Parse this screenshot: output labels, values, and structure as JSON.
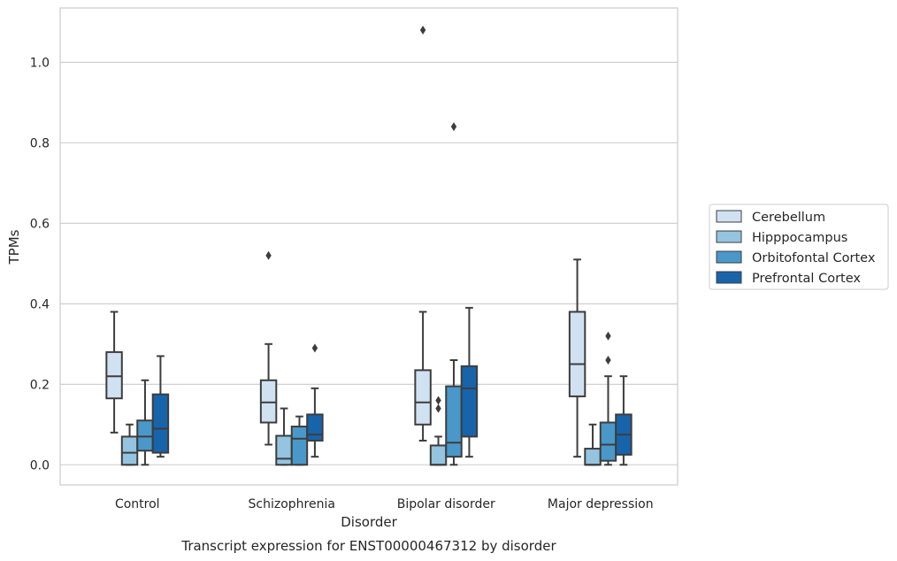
{
  "chart_data": {
    "type": "box",
    "xlabel": "Disorder",
    "ylabel": "TPMs",
    "caption": "Transcript expression for ENST00000467312 by disorder",
    "ylim": [
      -0.05,
      1.135
    ],
    "yticks": [
      0.0,
      0.2,
      0.4,
      0.6,
      0.8,
      1.0
    ],
    "ytick_labels": [
      "0.0",
      "0.2",
      "0.4",
      "0.6",
      "0.8",
      "1.0"
    ],
    "grid": "horizontal",
    "legend_position": "outside-right",
    "categories": [
      "Control",
      "Schizophrenia",
      "Bipolar disorder",
      "Major depression"
    ],
    "series": [
      {
        "name": "Cerebellum",
        "color": "#d0e1f2",
        "boxes": [
          {
            "whislo": 0.08,
            "q1": 0.165,
            "med": 0.22,
            "q3": 0.28,
            "whishi": 0.38,
            "fliers": []
          },
          {
            "whislo": 0.05,
            "q1": 0.105,
            "med": 0.155,
            "q3": 0.21,
            "whishi": 0.3,
            "fliers": [
              0.52
            ]
          },
          {
            "whislo": 0.06,
            "q1": 0.1,
            "med": 0.155,
            "q3": 0.235,
            "whishi": 0.38,
            "fliers": [
              1.08
            ]
          },
          {
            "whislo": 0.02,
            "q1": 0.17,
            "med": 0.25,
            "q3": 0.38,
            "whishi": 0.51,
            "fliers": []
          }
        ]
      },
      {
        "name": "Hipppocampus",
        "color": "#94c4df",
        "boxes": [
          {
            "whislo": 0.0,
            "q1": 0.0,
            "med": 0.03,
            "q3": 0.07,
            "whishi": 0.1,
            "fliers": []
          },
          {
            "whislo": 0.0,
            "q1": 0.0,
            "med": 0.015,
            "q3": 0.072,
            "whishi": 0.14,
            "fliers": []
          },
          {
            "whislo": 0.0,
            "q1": 0.0,
            "med": 0.0,
            "q3": 0.048,
            "whishi": 0.07,
            "fliers": [
              0.14,
              0.16
            ]
          },
          {
            "whislo": 0.0,
            "q1": 0.0,
            "med": 0.0,
            "q3": 0.04,
            "whishi": 0.1,
            "fliers": []
          }
        ]
      },
      {
        "name": "Orbitofontal Cortex",
        "color": "#4a98c9",
        "boxes": [
          {
            "whislo": 0.0,
            "q1": 0.035,
            "med": 0.07,
            "q3": 0.11,
            "whishi": 0.21,
            "fliers": []
          },
          {
            "whislo": 0.0,
            "q1": 0.0,
            "med": 0.065,
            "q3": 0.095,
            "whishi": 0.12,
            "fliers": []
          },
          {
            "whislo": 0.0,
            "q1": 0.02,
            "med": 0.055,
            "q3": 0.195,
            "whishi": 0.26,
            "fliers": [
              0.84
            ]
          },
          {
            "whislo": 0.0,
            "q1": 0.01,
            "med": 0.05,
            "q3": 0.105,
            "whishi": 0.22,
            "fliers": [
              0.26,
              0.32
            ]
          }
        ]
      },
      {
        "name": "Prefrontal Cortex",
        "color": "#1764ab",
        "boxes": [
          {
            "whislo": 0.02,
            "q1": 0.03,
            "med": 0.09,
            "q3": 0.175,
            "whishi": 0.27,
            "fliers": []
          },
          {
            "whislo": 0.02,
            "q1": 0.06,
            "med": 0.075,
            "q3": 0.125,
            "whishi": 0.19,
            "fliers": [
              0.29
            ]
          },
          {
            "whislo": 0.02,
            "q1": 0.07,
            "med": 0.19,
            "q3": 0.245,
            "whishi": 0.39,
            "fliers": []
          },
          {
            "whislo": 0.0,
            "q1": 0.025,
            "med": 0.075,
            "q3": 0.125,
            "whishi": 0.22,
            "fliers": []
          }
        ]
      }
    ]
  }
}
